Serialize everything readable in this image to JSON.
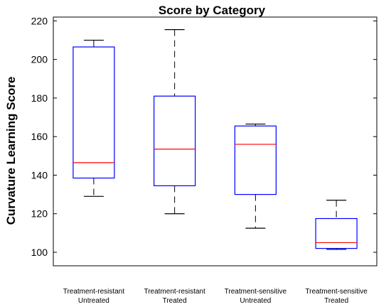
{
  "chart_data": {
    "type": "box",
    "title": "Score by Category",
    "xlabel": "",
    "ylabel": "Curvature Learning Score",
    "ylim": [
      93,
      222
    ],
    "yticks": [
      100,
      120,
      140,
      160,
      180,
      200,
      220
    ],
    "grid": false,
    "categories": [
      [
        "Treatment-resistant",
        "Untreated"
      ],
      [
        "Treatment-resistant",
        "Treated"
      ],
      [
        "Treatment-sensitive",
        "Untreated"
      ],
      [
        "Treatment-sensitive",
        "Treated"
      ]
    ],
    "boxes": [
      {
        "min": 129,
        "q1": 138.5,
        "median": 146.5,
        "q3": 206.5,
        "max": 210
      },
      {
        "min": 120,
        "q1": 134.5,
        "median": 153.5,
        "q3": 181,
        "max": 215.5
      },
      {
        "min": 112.5,
        "q1": 130,
        "median": 156,
        "q3": 165.5,
        "max": 166.5
      },
      {
        "min": 101.5,
        "q1": 102,
        "median": 105,
        "q3": 117.5,
        "max": 127
      }
    ],
    "colors": {
      "box": "#0000ff",
      "median": "#ff0000",
      "whisker": "#000000",
      "axis": "#000000"
    }
  }
}
